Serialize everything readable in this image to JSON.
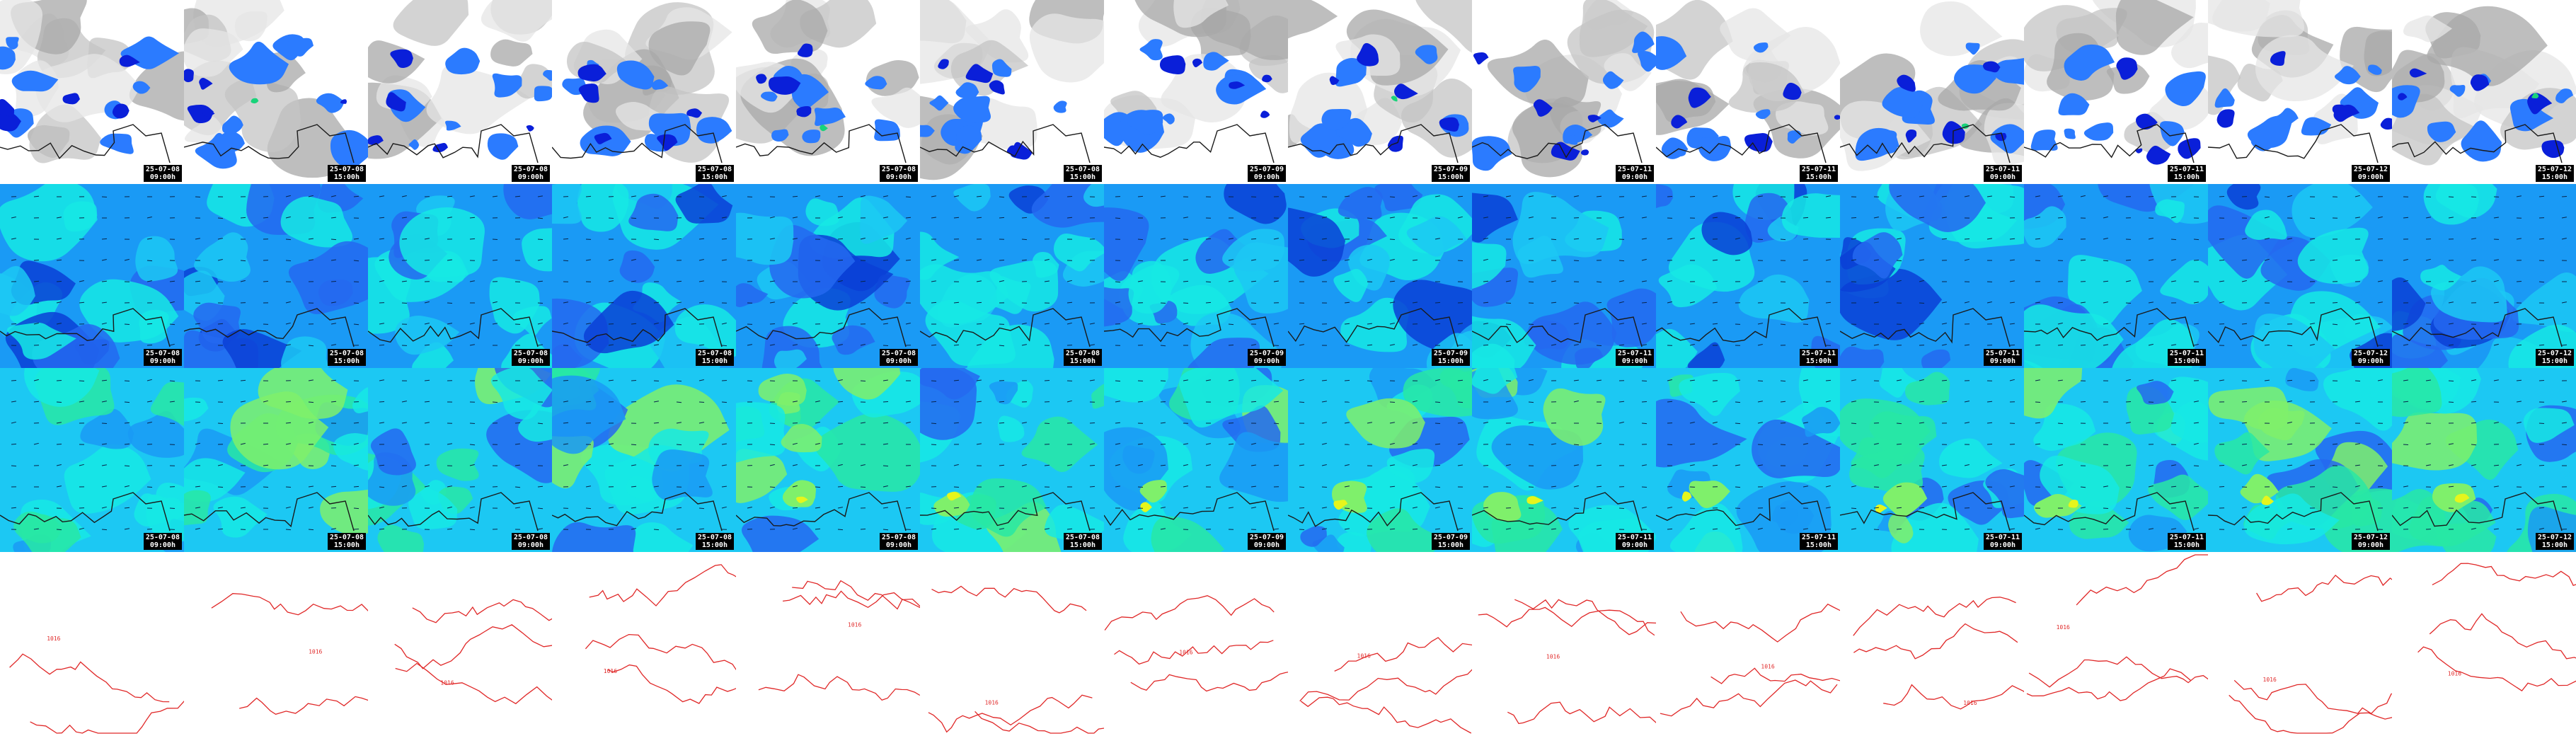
{
  "panels": [
    {
      "date": "25-07-08",
      "time": "09:00h"
    },
    {
      "date": "25-07-08",
      "time": "15:00h"
    },
    {
      "date": "25-07-08",
      "time": "09:00h"
    },
    {
      "date": "25-07-08",
      "time": "15:00h"
    },
    {
      "date": "25-07-08",
      "time": "09:00h"
    },
    {
      "date": "25-07-08",
      "time": "15:00h"
    },
    {
      "date": "25-07-09",
      "time": "09:00h"
    },
    {
      "date": "25-07-09",
      "time": "15:00h"
    },
    {
      "date": "25-07-11",
      "time": "09:00h"
    },
    {
      "date": "25-07-11",
      "time": "15:00h"
    },
    {
      "date": "25-07-11",
      "time": "09:00h"
    },
    {
      "date": "25-07-11",
      "time": "15:00h"
    },
    {
      "date": "25-07-12",
      "time": "09:00h"
    },
    {
      "date": "25-07-12",
      "time": "15:00h"
    }
  ],
  "rows": [
    {
      "name": "cloud-precipitation-row",
      "kind": "cloud"
    },
    {
      "name": "wind-field-row",
      "kind": "wind1"
    },
    {
      "name": "wind-gust-row",
      "kind": "wind2"
    },
    {
      "name": "isobar-row",
      "kind": "isobar"
    }
  ],
  "isobar_label": "1016",
  "colors": {
    "cloud_light": "#e6e6e6",
    "cloud_mid": "#c4c4c4",
    "cloud_dark": "#a8a8a8",
    "precip_light": "#2b7bff",
    "precip_dark": "#0a1fd9",
    "precip_peak": "#19d37a",
    "wind_1": "#0a3fd6",
    "wind_2": "#2468f0",
    "wind_3": "#1a9af5",
    "wind_4": "#1cc8f3",
    "wind_5": "#16e9e4",
    "wind_6": "#28e7a4",
    "wind_7": "#7ff06b",
    "wind_8": "#e6f51c",
    "coastline": "#1a1a1a",
    "isobar": "#e02828",
    "background": "#ffffff"
  }
}
